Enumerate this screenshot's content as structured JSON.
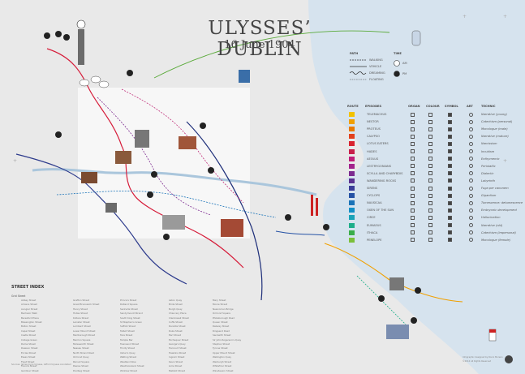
{
  "poster": {
    "title": "ULYSSES’ DUBLIN",
    "subtitle": "16 June 1904"
  },
  "path_legend": {
    "heading": "PATH",
    "items": [
      "WALKING",
      "VEHICLE",
      "DREAMING",
      "FLOATING"
    ]
  },
  "time_legend": {
    "heading": "TIME",
    "items": [
      "AM",
      "PM"
    ]
  },
  "episode_table": {
    "headers": [
      "ROUTE",
      "EPISODES",
      "ORGAN",
      "COLOUR",
      "SYMBOL",
      "ART",
      "TECHNIC"
    ],
    "episodes": [
      {
        "name": "TELEMACHUS",
        "color": "#f2c200",
        "technic": "Narrative (young)"
      },
      {
        "name": "NESTOR",
        "color": "#f0a000",
        "technic": "Catechism (personal)"
      },
      {
        "name": "PROTEUS",
        "color": "#e87a00",
        "technic": "Monologue (male)"
      },
      {
        "name": "CALYPSO",
        "color": "#e2401c",
        "technic": "Narrative (mature)"
      },
      {
        "name": "LOTUS EATERS",
        "color": "#d9232e",
        "technic": "Narcissism"
      },
      {
        "name": "HADES",
        "color": "#c81e4a",
        "technic": "Incubism"
      },
      {
        "name": "AEOLUS",
        "color": "#c01e78",
        "technic": "Enthymemic"
      },
      {
        "name": "LESTRYGONIANS",
        "color": "#a3238c",
        "technic": "Peristaltic"
      },
      {
        "name": "SCYLLA AND CHARYBDIS",
        "color": "#7c2a90",
        "technic": "Dialectic"
      },
      {
        "name": "WANDERING ROCKS",
        "color": "#5a3191",
        "technic": "Labyrinth"
      },
      {
        "name": "SIRENS",
        "color": "#3a3d98",
        "technic": "Fuga per canonem"
      },
      {
        "name": "CYCLOPS",
        "color": "#2552a5",
        "technic": "Gigantism"
      },
      {
        "name": "NAUSICAA",
        "color": "#1a73b8",
        "technic": "Tumescence: detumescence"
      },
      {
        "name": "OXEN OF THE SUN",
        "color": "#128fc6",
        "technic": "Embryonic development"
      },
      {
        "name": "CIRCE",
        "color": "#1aa3b8",
        "technic": "Hallucination"
      },
      {
        "name": "EUMAEUS",
        "color": "#1eae8a",
        "technic": "Narrative (old)"
      },
      {
        "name": "ITHACA",
        "color": "#3aae4a",
        "technic": "Catechism (impersonal)"
      },
      {
        "name": "PENELOPE",
        "color": "#7bbf3a",
        "technic": "Monologue (female)"
      }
    ]
  },
  "street_index": {
    "heading": "STREET INDEX",
    "subheading": "Grid  Street",
    "columns": [
      [
        "Abbey Street",
        "Amiens Street",
        "Aungier Street",
        "Bachelor Walk",
        "Beresford Place",
        "Blessington Street",
        "Bolton Street",
        "Capel Street",
        "Castle Street",
        "College Green",
        "Dame Street",
        "Dawson Street",
        "Eccles Street",
        "Essex Street",
        "Fleet Street",
        "Francis Street",
        "Gardiner Street"
      ],
      [
        "Grafton Street",
        "Great Brunswick Street",
        "Henry Street",
        "Holles Street",
        "Kildare Street",
        "Leinster Street",
        "Lombard Street",
        "Lower Mount Street",
        "Marlborough Street",
        "Merrion Square",
        "Molesworth Street",
        "Nassau Street",
        "North Strand Road",
        "Ormond Quay",
        "Parnell Square",
        "Pearse Street",
        "Poolbeg Street"
      ],
      [
        "Prince's Street",
        "Rutland Square",
        "Sackville Street",
        "Sandymount Strand",
        "South King Street",
        "St Stephen's Green",
        "Suffolk Street",
        "Talbot Street",
        "Tara Street",
        "Temple Bar",
        "Townsend Street",
        "Trinity Street",
        "Usher's Quay",
        "Watling Street",
        "Westland Row",
        "Westmoreland Street",
        "Wicklow Street"
      ],
      [
        "Aston Quay",
        "Bride Street",
        "Burgh Quay",
        "Chancery Place",
        "Clanbrassil Street",
        "Cuffe Street",
        "Denzille Street",
        "Duke Street",
        "Earl Street",
        "Exchequer Street",
        "George's Quay",
        "Harcourt Street",
        "Hawkins Street",
        "Ingram Street",
        "Kevin Street",
        "Lime Street",
        "Mabbot Street"
      ],
      [
        "Mary Street",
        "Moore Street",
        "Newcomen Bridge",
        "Ormond Square",
        "Phibsborough Road",
        "Queen Street",
        "Railway Street",
        "Ringsend Road",
        "Sandwith Street",
        "Sir John Rogerson's Quay",
        "Stephen Street",
        "Tyrone Street",
        "Upper Mount Street",
        "Wellington Quay",
        "Werburgh Street",
        "Whitefriar Street",
        "Winetavern Street"
      ]
    ]
  },
  "credits": {
    "left": "Sources: James Joyce Ulysses, Gifford Ulysses Annotated",
    "right": "Infographic designed by Rocio Moreno",
    "right2": "©2014 All Rights Reserved"
  }
}
